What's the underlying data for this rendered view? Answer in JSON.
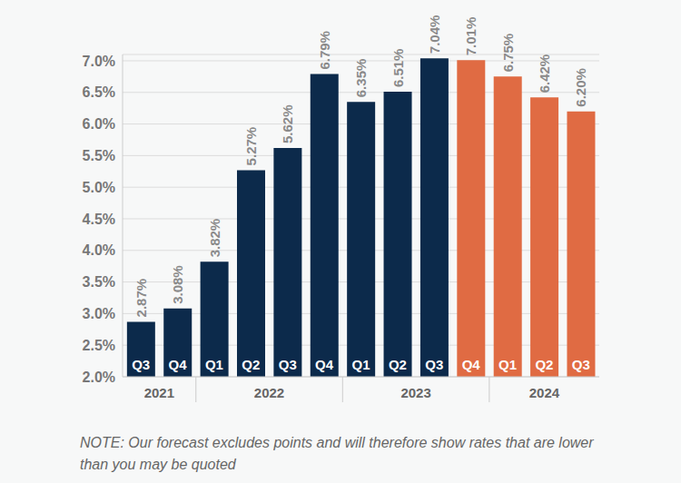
{
  "chart_data": {
    "type": "bar",
    "categories": [
      "Q3",
      "Q4",
      "Q1",
      "Q2",
      "Q3",
      "Q4",
      "Q1",
      "Q2",
      "Q3",
      "Q4",
      "Q1",
      "Q2",
      "Q3"
    ],
    "years": [
      "2021",
      "2021",
      "2022",
      "2022",
      "2022",
      "2022",
      "2023",
      "2023",
      "2023",
      "2023",
      "2024",
      "2024",
      "2024"
    ],
    "values": [
      2.87,
      3.08,
      3.82,
      5.27,
      5.62,
      6.79,
      6.35,
      6.51,
      7.04,
      7.01,
      6.75,
      6.42,
      6.2
    ],
    "value_labels": [
      "2.87%",
      "3.08%",
      "3.82%",
      "5.27%",
      "5.62%",
      "6.79%",
      "6.35%",
      "6.51%",
      "7.04%",
      "7.01%",
      "6.75%",
      "6.42%",
      "6.20%"
    ],
    "colors": [
      "#0c2a4b",
      "#0c2a4b",
      "#0c2a4b",
      "#0c2a4b",
      "#0c2a4b",
      "#0c2a4b",
      "#0c2a4b",
      "#0c2a4b",
      "#0c2a4b",
      "#e06b43",
      "#e06b43",
      "#e06b43",
      "#e06b43"
    ],
    "ylim": [
      2,
      7.1
    ],
    "yticks": [
      {
        "value": 2,
        "label": "2.0%"
      },
      {
        "value": 2.5,
        "label": "2.5%"
      },
      {
        "value": 3,
        "label": "3.0%"
      },
      {
        "value": 3.5,
        "label": "3.5%"
      },
      {
        "value": 4,
        "label": "4.0%"
      },
      {
        "value": 4.5,
        "label": "4.5%"
      },
      {
        "value": 5,
        "label": "5.0%"
      },
      {
        "value": 5.5,
        "label": "5.5%"
      },
      {
        "value": 6,
        "label": "6.0%"
      },
      {
        "value": 6.5,
        "label": "6.5%"
      },
      {
        "value": 7,
        "label": "7.0%"
      }
    ],
    "grid": true,
    "data_labels": true,
    "note": "NOTE: Our forecast excludes points and will therefore show rates that are lower than you may be quoted"
  }
}
